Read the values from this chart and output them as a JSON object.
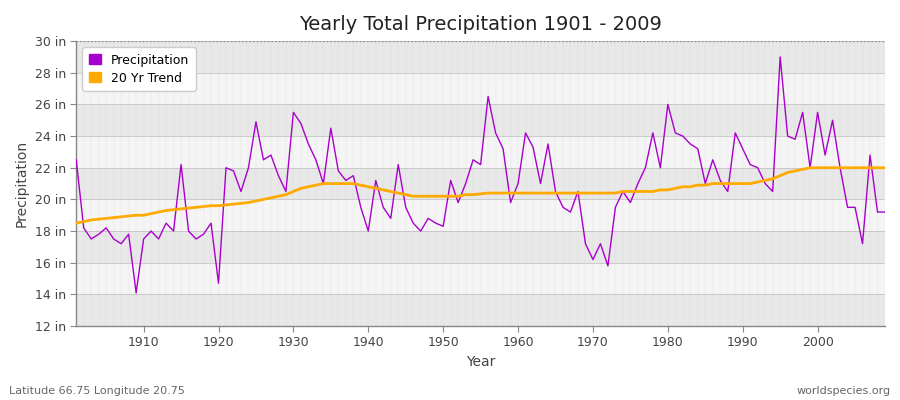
{
  "title": "Yearly Total Precipitation 1901 - 2009",
  "xlabel": "Year",
  "ylabel": "Precipitation",
  "years": [
    1901,
    1902,
    1903,
    1904,
    1905,
    1906,
    1907,
    1908,
    1909,
    1910,
    1911,
    1912,
    1913,
    1914,
    1915,
    1916,
    1917,
    1918,
    1919,
    1920,
    1921,
    1922,
    1923,
    1924,
    1925,
    1926,
    1927,
    1928,
    1929,
    1930,
    1931,
    1932,
    1933,
    1934,
    1935,
    1936,
    1937,
    1938,
    1939,
    1940,
    1941,
    1942,
    1943,
    1944,
    1945,
    1946,
    1947,
    1948,
    1949,
    1950,
    1951,
    1952,
    1953,
    1954,
    1955,
    1956,
    1957,
    1958,
    1959,
    1960,
    1961,
    1962,
    1963,
    1964,
    1965,
    1966,
    1967,
    1968,
    1969,
    1970,
    1971,
    1972,
    1973,
    1974,
    1975,
    1976,
    1977,
    1978,
    1979,
    1980,
    1981,
    1982,
    1983,
    1984,
    1985,
    1986,
    1987,
    1988,
    1989,
    1990,
    1991,
    1992,
    1993,
    1994,
    1995,
    1996,
    1997,
    1998,
    1999,
    2000,
    2001,
    2002,
    2003,
    2004,
    2005,
    2006,
    2007,
    2008,
    2009
  ],
  "precip": [
    22.5,
    18.2,
    17.5,
    17.8,
    18.2,
    17.5,
    17.2,
    17.8,
    14.1,
    17.5,
    18.0,
    17.5,
    18.5,
    18.0,
    22.2,
    18.0,
    17.5,
    17.8,
    18.5,
    14.7,
    22.0,
    21.8,
    20.5,
    22.0,
    24.9,
    22.5,
    22.8,
    21.5,
    20.5,
    25.5,
    24.8,
    23.5,
    22.5,
    21.0,
    24.5,
    21.8,
    21.2,
    21.5,
    19.5,
    18.0,
    21.2,
    19.5,
    18.8,
    22.2,
    19.5,
    18.5,
    18.0,
    18.8,
    18.5,
    18.3,
    21.2,
    19.8,
    21.0,
    22.5,
    22.2,
    26.5,
    24.2,
    23.2,
    19.8,
    21.0,
    24.2,
    23.3,
    21.0,
    23.5,
    20.5,
    19.5,
    19.2,
    20.5,
    17.2,
    16.2,
    17.2,
    15.8,
    19.5,
    20.5,
    19.8,
    21.0,
    22.0,
    24.2,
    22.0,
    26.0,
    24.2,
    24.0,
    23.5,
    23.2,
    21.0,
    22.5,
    21.2,
    20.5,
    24.2,
    23.2,
    22.2,
    22.0,
    21.0,
    20.5,
    29.0,
    24.0,
    23.8,
    25.5,
    22.0,
    25.5,
    22.8,
    25.0,
    22.0,
    19.5,
    19.5,
    17.2,
    22.8,
    19.2,
    19.2
  ],
  "trend": [
    18.5,
    18.6,
    18.7,
    18.75,
    18.8,
    18.85,
    18.9,
    18.95,
    19.0,
    19.0,
    19.1,
    19.2,
    19.3,
    19.35,
    19.4,
    19.45,
    19.5,
    19.55,
    19.6,
    19.6,
    19.65,
    19.7,
    19.75,
    19.8,
    19.9,
    20.0,
    20.1,
    20.2,
    20.3,
    20.5,
    20.7,
    20.8,
    20.9,
    21.0,
    21.0,
    21.0,
    21.0,
    21.0,
    20.9,
    20.8,
    20.7,
    20.6,
    20.5,
    20.4,
    20.3,
    20.2,
    20.2,
    20.2,
    20.2,
    20.2,
    20.2,
    20.2,
    20.3,
    20.3,
    20.35,
    20.4,
    20.4,
    20.4,
    20.4,
    20.4,
    20.4,
    20.4,
    20.4,
    20.4,
    20.4,
    20.4,
    20.4,
    20.4,
    20.4,
    20.4,
    20.4,
    20.4,
    20.4,
    20.5,
    20.5,
    20.5,
    20.5,
    20.5,
    20.6,
    20.6,
    20.7,
    20.8,
    20.8,
    20.9,
    20.9,
    21.0,
    21.0,
    21.0,
    21.0,
    21.0,
    21.0,
    21.1,
    21.2,
    21.3,
    21.5,
    21.7,
    21.8,
    21.9,
    22.0,
    22.0,
    22.0,
    22.0,
    22.0,
    22.0,
    22.0,
    22.0,
    22.0,
    22.0,
    22.0
  ],
  "precip_color": "#aa00cc",
  "trend_color": "#ffaa00",
  "bg_color": "#ffffff",
  "plot_bg_color": "#f0f0f0",
  "grid_color": "#dddddd",
  "band_color_dark": "#e8e8e8",
  "band_color_light": "#f5f5f5",
  "ylim": [
    12,
    30
  ],
  "yticks": [
    12,
    14,
    16,
    18,
    20,
    22,
    24,
    26,
    28,
    30
  ],
  "ytick_labels": [
    "12 in",
    "14 in",
    "16 in",
    "18 in",
    "20 in",
    "22 in",
    "24 in",
    "26 in",
    "28 in",
    "30 in"
  ],
  "xticks": [
    1910,
    1920,
    1930,
    1940,
    1950,
    1960,
    1970,
    1980,
    1990,
    2000
  ],
  "footer_left": "Latitude 66.75 Longitude 20.75",
  "footer_right": "worldspecies.org",
  "legend_labels": [
    "Precipitation",
    "20 Yr Trend"
  ]
}
